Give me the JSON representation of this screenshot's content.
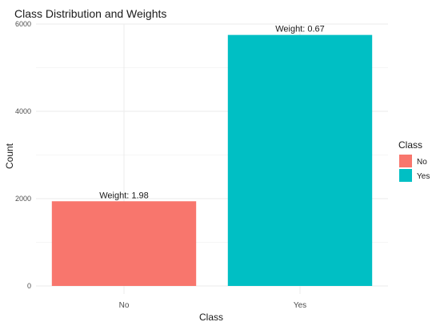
{
  "chart_data": {
    "type": "bar",
    "title": "Class Distribution and Weights",
    "xlabel": "Class",
    "ylabel": "Count",
    "categories": [
      "No",
      "Yes"
    ],
    "values": [
      1940,
      5750
    ],
    "data_labels": [
      "Weight: 1.98",
      "Weight: 0.67"
    ],
    "colors": [
      "#F8766D",
      "#00BFC4"
    ],
    "ylim": [
      0,
      6000
    ],
    "yticks": [
      0,
      2000,
      4000,
      6000
    ],
    "ytick_labels": [
      "0",
      "2000",
      "4000",
      "6000"
    ],
    "grid": true,
    "legend": {
      "title": "Class",
      "position": "right",
      "entries": [
        "No",
        "Yes"
      ]
    }
  }
}
